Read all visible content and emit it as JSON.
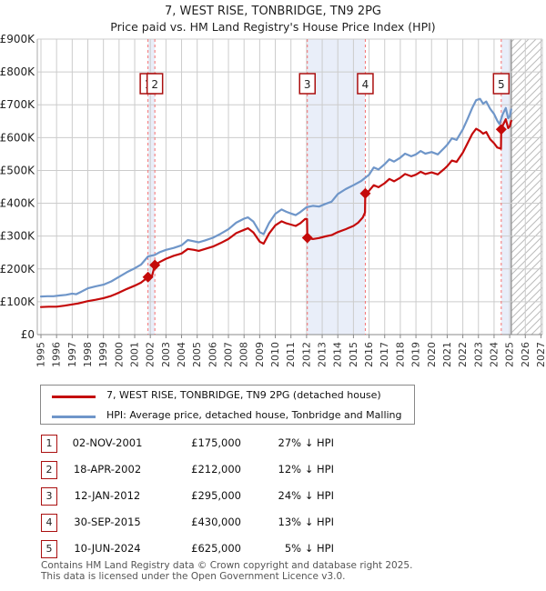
{
  "header": {
    "title": "7, WEST RISE, TONBRIDGE, TN9 2PG",
    "subtitle": "Price paid vs. HM Land Registry's House Price Index (HPI)"
  },
  "chart_data": {
    "type": "line",
    "title": "7, WEST RISE, TONBRIDGE, TN9 2PG",
    "subtitle": "Price paid vs. HM Land Registry's House Price Index (HPI)",
    "ylabel": "",
    "xlabel": "",
    "ylim_thousands": [
      0,
      900
    ],
    "xlim_years": [
      1994.77,
      2027.1
    ],
    "grid": true,
    "y_ticks": [
      {
        "label": "£900K",
        "value": 900
      },
      {
        "label": "£800K",
        "value": 800
      },
      {
        "label": "£700K",
        "value": 700
      },
      {
        "label": "£600K",
        "value": 600
      },
      {
        "label": "£500K",
        "value": 500
      },
      {
        "label": "£400K",
        "value": 400
      },
      {
        "label": "£300K",
        "value": 300
      },
      {
        "label": "£200K",
        "value": 200
      },
      {
        "label": "£100K",
        "value": 100
      },
      {
        "label": "£0",
        "value": 0
      }
    ],
    "x_ticks": [
      1995,
      1996,
      1997,
      1998,
      1999,
      2000,
      2001,
      2002,
      2003,
      2004,
      2005,
      2006,
      2007,
      2008,
      2009,
      2010,
      2011,
      2012,
      2013,
      2014,
      2015,
      2016,
      2017,
      2018,
      2019,
      2020,
      2021,
      2022,
      2023,
      2024,
      2025,
      2026,
      2027
    ],
    "bands_years": [
      [
        2001.85,
        2002.29
      ],
      [
        2012.05,
        2015.75
      ],
      [
        2024.46,
        2025.1
      ]
    ],
    "future_hatch_years": [
      2025.1,
      2027.1
    ],
    "colors": {
      "price_line": "#c40a0a",
      "hpi_line": "#6f96c9",
      "sale_dash": "#f47272",
      "band_fill": "#e9eef9",
      "grid": "#cccccc",
      "marker_box_border": "#aa0f0f",
      "hatch_line": "#bbbbbb"
    },
    "series": [
      {
        "name": "7, WEST RISE, TONBRIDGE, TN9 2PG (detached house)",
        "color": "#c40a0a",
        "points_year_thousands": [
          [
            1995.0,
            84
          ],
          [
            1995.5,
            85
          ],
          [
            1996.0,
            85
          ],
          [
            1996.5,
            88
          ],
          [
            1997.0,
            92
          ],
          [
            1997.4,
            95
          ],
          [
            1998.0,
            102
          ],
          [
            1998.5,
            106
          ],
          [
            1999.0,
            111
          ],
          [
            1999.5,
            118
          ],
          [
            2000.0,
            128
          ],
          [
            2000.5,
            139
          ],
          [
            2001.0,
            149
          ],
          [
            2001.4,
            158
          ],
          [
            2001.85,
            175
          ],
          [
            2002.1,
            177
          ],
          [
            2002.29,
            212
          ],
          [
            2002.6,
            221
          ],
          [
            2003.0,
            231
          ],
          [
            2003.5,
            240
          ],
          [
            2004.0,
            247
          ],
          [
            2004.4,
            261
          ],
          [
            2004.8,
            258
          ],
          [
            2005.1,
            255
          ],
          [
            2005.5,
            261
          ],
          [
            2006.0,
            268
          ],
          [
            2006.5,
            279
          ],
          [
            2007.0,
            291
          ],
          [
            2007.5,
            309
          ],
          [
            2008.0,
            319
          ],
          [
            2008.25,
            324
          ],
          [
            2008.6,
            311
          ],
          [
            2009.0,
            283
          ],
          [
            2009.25,
            277
          ],
          [
            2009.6,
            308
          ],
          [
            2010.0,
            333
          ],
          [
            2010.4,
            345
          ],
          [
            2010.7,
            339
          ],
          [
            2011.0,
            335
          ],
          [
            2011.3,
            331
          ],
          [
            2011.6,
            339
          ],
          [
            2011.9,
            352
          ],
          [
            2012.03,
            352
          ],
          [
            2012.05,
            295
          ],
          [
            2012.4,
            291
          ],
          [
            2012.8,
            294
          ],
          [
            2013.2,
            299
          ],
          [
            2013.6,
            303
          ],
          [
            2014.0,
            312
          ],
          [
            2014.5,
            321
          ],
          [
            2015.0,
            331
          ],
          [
            2015.3,
            341
          ],
          [
            2015.6,
            357
          ],
          [
            2015.74,
            372
          ],
          [
            2015.76,
            430
          ],
          [
            2016.0,
            438
          ],
          [
            2016.3,
            455
          ],
          [
            2016.6,
            449
          ],
          [
            2017.0,
            461
          ],
          [
            2017.3,
            474
          ],
          [
            2017.6,
            467
          ],
          [
            2018.0,
            478
          ],
          [
            2018.3,
            489
          ],
          [
            2018.7,
            482
          ],
          [
            2019.0,
            487
          ],
          [
            2019.3,
            496
          ],
          [
            2019.6,
            489
          ],
          [
            2020.0,
            494
          ],
          [
            2020.4,
            488
          ],
          [
            2020.8,
            504
          ],
          [
            2021.0,
            513
          ],
          [
            2021.3,
            530
          ],
          [
            2021.6,
            526
          ],
          [
            2022.0,
            554
          ],
          [
            2022.3,
            582
          ],
          [
            2022.6,
            611
          ],
          [
            2022.85,
            627
          ],
          [
            2023.1,
            620
          ],
          [
            2023.3,
            612
          ],
          [
            2023.5,
            617
          ],
          [
            2023.75,
            595
          ],
          [
            2024.0,
            583
          ],
          [
            2024.2,
            570
          ],
          [
            2024.44,
            566
          ],
          [
            2024.46,
            625
          ],
          [
            2024.6,
            641
          ],
          [
            2024.75,
            656
          ],
          [
            2024.9,
            629
          ],
          [
            2025.0,
            634
          ],
          [
            2025.1,
            651
          ]
        ]
      },
      {
        "name": "HPI: Average price, detached house, Tonbridge and Malling",
        "color": "#6f96c9",
        "points_year_thousands": [
          [
            1995.0,
            116
          ],
          [
            1995.4,
            117
          ],
          [
            1995.8,
            117
          ],
          [
            1996.2,
            119
          ],
          [
            1996.6,
            121
          ],
          [
            1997.0,
            125
          ],
          [
            1997.25,
            123
          ],
          [
            1997.6,
            131
          ],
          [
            1998.0,
            141
          ],
          [
            1998.5,
            147
          ],
          [
            1999.0,
            152
          ],
          [
            1999.5,
            162
          ],
          [
            2000.0,
            176
          ],
          [
            2000.5,
            190
          ],
          [
            2001.0,
            202
          ],
          [
            2001.4,
            213
          ],
          [
            2001.85,
            238
          ],
          [
            2002.29,
            243
          ],
          [
            2002.6,
            251
          ],
          [
            2003.0,
            258
          ],
          [
            2003.5,
            264
          ],
          [
            2004.0,
            272
          ],
          [
            2004.4,
            288
          ],
          [
            2004.8,
            284
          ],
          [
            2005.1,
            281
          ],
          [
            2005.5,
            287
          ],
          [
            2006.0,
            295
          ],
          [
            2006.5,
            307
          ],
          [
            2007.0,
            321
          ],
          [
            2007.5,
            341
          ],
          [
            2008.0,
            353
          ],
          [
            2008.25,
            357
          ],
          [
            2008.6,
            344
          ],
          [
            2009.0,
            312
          ],
          [
            2009.25,
            306
          ],
          [
            2009.6,
            340
          ],
          [
            2010.0,
            368
          ],
          [
            2010.4,
            381
          ],
          [
            2010.7,
            374
          ],
          [
            2011.0,
            369
          ],
          [
            2011.3,
            364
          ],
          [
            2011.6,
            373
          ],
          [
            2012.0,
            388
          ],
          [
            2012.4,
            392
          ],
          [
            2012.8,
            390
          ],
          [
            2013.2,
            398
          ],
          [
            2013.6,
            405
          ],
          [
            2014.0,
            428
          ],
          [
            2014.5,
            443
          ],
          [
            2015.0,
            455
          ],
          [
            2015.5,
            468
          ],
          [
            2016.0,
            487
          ],
          [
            2016.3,
            509
          ],
          [
            2016.6,
            503
          ],
          [
            2017.0,
            519
          ],
          [
            2017.3,
            534
          ],
          [
            2017.6,
            527
          ],
          [
            2018.0,
            539
          ],
          [
            2018.3,
            551
          ],
          [
            2018.7,
            543
          ],
          [
            2019.0,
            549
          ],
          [
            2019.3,
            559
          ],
          [
            2019.6,
            551
          ],
          [
            2020.0,
            556
          ],
          [
            2020.4,
            549
          ],
          [
            2020.8,
            568
          ],
          [
            2021.0,
            578
          ],
          [
            2021.3,
            598
          ],
          [
            2021.6,
            593
          ],
          [
            2022.0,
            625
          ],
          [
            2022.3,
            656
          ],
          [
            2022.6,
            690
          ],
          [
            2022.85,
            714
          ],
          [
            2023.1,
            718
          ],
          [
            2023.3,
            703
          ],
          [
            2023.5,
            710
          ],
          [
            2023.75,
            688
          ],
          [
            2024.0,
            672
          ],
          [
            2024.2,
            652
          ],
          [
            2024.35,
            641
          ],
          [
            2024.55,
            671
          ],
          [
            2024.75,
            690
          ],
          [
            2024.9,
            659
          ],
          [
            2025.0,
            664
          ],
          [
            2025.1,
            686
          ]
        ]
      }
    ],
    "sales": [
      {
        "n": "1",
        "date": "02-NOV-2001",
        "price": "£175,000",
        "vs_hpi": "27% ↓ HPI",
        "year": 2001.85,
        "value_thousands": 175
      },
      {
        "n": "2",
        "date": "18-APR-2002",
        "price": "£212,000",
        "vs_hpi": "12% ↓ HPI",
        "year": 2002.29,
        "value_thousands": 212
      },
      {
        "n": "3",
        "date": "12-JAN-2012",
        "price": "£295,000",
        "vs_hpi": "24% ↓ HPI",
        "year": 2012.05,
        "value_thousands": 295
      },
      {
        "n": "4",
        "date": "30-SEP-2015",
        "price": "£430,000",
        "vs_hpi": "13% ↓ HPI",
        "year": 2015.76,
        "value_thousands": 430
      },
      {
        "n": "5",
        "date": "10-JUN-2024",
        "price": "£625,000",
        "vs_hpi": "5% ↓ HPI",
        "year": 2024.46,
        "value_thousands": 625
      }
    ]
  },
  "legend": [
    {
      "label": "7, WEST RISE, TONBRIDGE, TN9 2PG (detached house)",
      "color": "#c40a0a"
    },
    {
      "label": "HPI: Average price, detached house, Tonbridge and Malling",
      "color": "#6f96c9"
    }
  ],
  "footer": {
    "line1": "Contains HM Land Registry data © Crown copyright and database right 2025.",
    "line2": "This data is licensed under the Open Government Licence v3.0."
  }
}
